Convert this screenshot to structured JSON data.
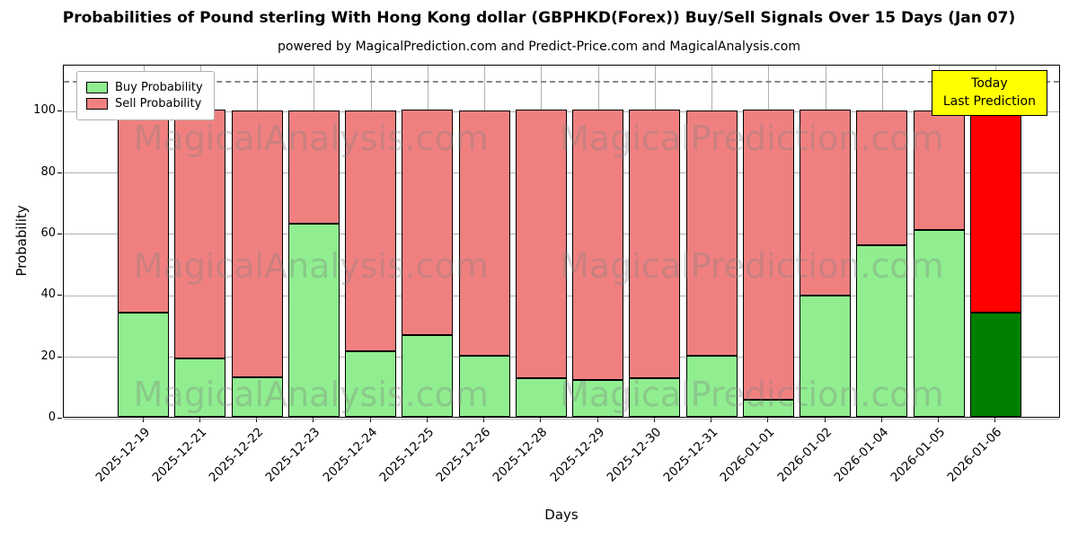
{
  "chart_data": {
    "type": "bar",
    "stacked": true,
    "title": "Probabilities of Pound sterling With Hong Kong dollar (GBPHKD(Forex)) Buy/Sell Signals Over 15 Days (Jan 07)",
    "subtitle": "powered by MagicalPrediction.com and Predict-Price.com and MagicalAnalysis.com",
    "xlabel": "Days",
    "ylabel": "Probability",
    "ylim": [
      0,
      115
    ],
    "yticks": [
      0,
      20,
      40,
      60,
      80,
      100
    ],
    "dashed_line_y": 110,
    "grid": true,
    "legend_position": "top-left",
    "categories": [
      "2025-12-19",
      "2025-12-21",
      "2025-12-22",
      "2025-12-23",
      "2025-12-24",
      "2025-12-25",
      "2025-12-26",
      "2025-12-28",
      "2025-12-29",
      "2025-12-30",
      "2025-12-31",
      "2026-01-01",
      "2026-01-02",
      "2026-01-04",
      "2026-01-05",
      "2026-01-06"
    ],
    "series": [
      {
        "name": "Buy Probability",
        "color": "#90ee90",
        "today_color": "#008000",
        "values": [
          34,
          19,
          13,
          63,
          21.5,
          26.5,
          20,
          12.5,
          12,
          12.5,
          20,
          5.5,
          39.5,
          56,
          61,
          34
        ]
      },
      {
        "name": "Sell Probability",
        "color": "#f08080",
        "today_color": "#ff0000",
        "values": [
          66,
          81,
          87,
          37,
          78.5,
          73.5,
          80,
          87.5,
          88,
          87.5,
          80,
          94.5,
          60.5,
          44,
          39,
          66
        ]
      }
    ],
    "annotation": {
      "line1": "Today",
      "line2": "Last Prediction",
      "bg": "#ffff00"
    },
    "watermarks": [
      "MagicalAnalysis.com",
      "MagicalPrediction.com"
    ]
  }
}
